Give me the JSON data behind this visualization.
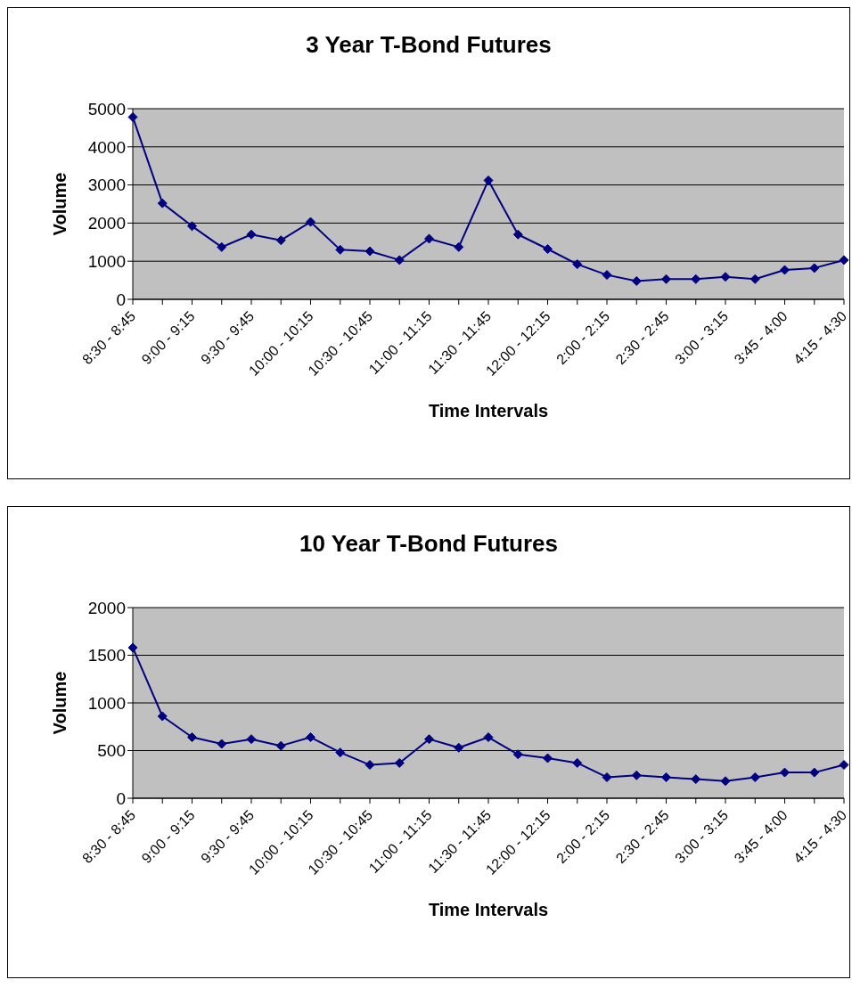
{
  "chart_data": [
    {
      "type": "line",
      "title": "3 Year T-Bond Futures",
      "xlabel": "Time Intervals",
      "ylabel": "Volume",
      "categories": [
        "8:30 - 8:45",
        null,
        "9:00 - 9:15",
        null,
        "9:30 - 9:45",
        null,
        "10:00 - 10:15",
        null,
        "10:30 - 10:45",
        null,
        "11:00 - 11:15",
        null,
        "11:30 - 11:45",
        null,
        "12:00 - 12:15",
        null,
        "2:00 - 2:15",
        null,
        "2:30 - 2:45",
        null,
        "3:00 - 3:15",
        null,
        "3:45 - 4:00",
        null,
        "4:15 - 4:30"
      ],
      "series": [
        {
          "color": "#000080",
          "values": [
            4780,
            2520,
            1920,
            1370,
            1700,
            1550,
            2030,
            1300,
            1260,
            1030,
            1590,
            1370,
            3120,
            1700,
            1320,
            920,
            640,
            480,
            530,
            530,
            590,
            530,
            770,
            820,
            1030
          ]
        }
      ],
      "ylim": [
        0,
        5000
      ],
      "yticks": [
        0,
        1000,
        2000,
        3000,
        4000,
        5000
      ],
      "grid": "y",
      "legend": false,
      "marker": "diamond",
      "line_style": "solid"
    },
    {
      "type": "line",
      "title": "10 Year T-Bond Futures",
      "xlabel": "Time Intervals",
      "ylabel": "Volume",
      "categories": [
        "8:30 - 8:45",
        null,
        "9:00 - 9:15",
        null,
        "9:30 - 9:45",
        null,
        "10:00 - 10:15",
        null,
        "10:30 - 10:45",
        null,
        "11:00 - 11:15",
        null,
        "11:30 - 11:45",
        null,
        "12:00 - 12:15",
        null,
        "2:00 - 2:15",
        null,
        "2:30 - 2:45",
        null,
        "3:00 - 3:15",
        null,
        "3:45 - 4:00",
        null,
        "4:15 - 4:30"
      ],
      "series": [
        {
          "color": "#000080",
          "values": [
            1580,
            860,
            640,
            570,
            620,
            550,
            640,
            480,
            350,
            370,
            620,
            530,
            640,
            460,
            420,
            370,
            220,
            240,
            220,
            200,
            180,
            220,
            270,
            270,
            350
          ]
        }
      ],
      "ylim": [
        0,
        2000
      ],
      "yticks": [
        0,
        500,
        1000,
        1500,
        2000
      ],
      "grid": "y",
      "legend": false,
      "marker": "diamond",
      "line_style": "solid"
    }
  ]
}
